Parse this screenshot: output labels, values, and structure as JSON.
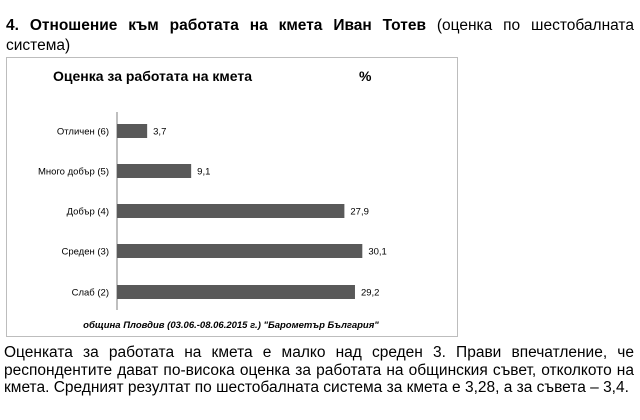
{
  "heading": {
    "number": "4.",
    "title_bold": "Отношение към работата на кмета Иван Тотев",
    "title_rest": "(оценка по шестобалната система)"
  },
  "chart_data": {
    "type": "bar",
    "orientation": "horizontal",
    "title": "Оценка за работата на кмета",
    "unit_label": "%",
    "categories": [
      "Отличен (6)",
      "Много добър (5)",
      "Добър (4)",
      "Среден (3)",
      "Слаб (2)"
    ],
    "values": [
      3.7,
      9.1,
      27.9,
      30.1,
      29.2
    ],
    "value_labels": [
      "3,7",
      "9,1",
      "27,9",
      "30,1",
      "29,2"
    ],
    "source": "община Пловдив (03.06.-08.06.2015 г.)  \"Барометър България\"",
    "bar_color": "#595959",
    "grid": false
  },
  "paragraph": "Оценката за работата на кмета е малко над среден 3. Прави впечатление, че респондентите дават по-висока оценка за работата на общинския съвет, отколкото на кмета. Средният резултат по шестобалната система за кмета е 3,28, а за съвета – 3,4."
}
